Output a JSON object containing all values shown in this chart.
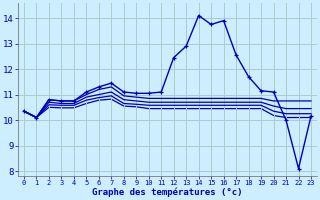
{
  "title": "Graphe des températures (°c)",
  "bg_color": "#cceeff",
  "grid_color": "#aacccc",
  "line_color": "#0000bb",
  "xlim": [
    -0.5,
    23.5
  ],
  "ylim": [
    7.8,
    14.6
  ],
  "xtick_labels": [
    "0",
    "1",
    "2",
    "3",
    "4",
    "5",
    "6",
    "7",
    "8",
    "9",
    "10",
    "11",
    "12",
    "13",
    "14",
    "15",
    "16",
    "17",
    "18",
    "19",
    "20",
    "21",
    "22",
    "23"
  ],
  "yticks": [
    8,
    9,
    10,
    11,
    12,
    13,
    14
  ],
  "series": [
    {
      "x": [
        0,
        1,
        2,
        3,
        4,
        5,
        6,
        7,
        8,
        9,
        10,
        11,
        12,
        13,
        14,
        15,
        16,
        17,
        18,
        19,
        20,
        21,
        22,
        23
      ],
      "y": [
        10.35,
        10.1,
        10.8,
        10.75,
        10.75,
        11.1,
        11.3,
        11.45,
        11.1,
        11.05,
        11.05,
        11.1,
        12.45,
        12.9,
        14.1,
        13.75,
        13.9,
        12.55,
        11.7,
        11.15,
        11.1,
        10.0,
        8.1,
        10.15
      ],
      "marker": "+",
      "markersize": 3.5,
      "linewidth": 1.0,
      "zorder": 5
    },
    {
      "x": [
        0,
        1,
        2,
        3,
        4,
        5,
        6,
        7,
        8,
        9,
        10,
        11,
        12,
        13,
        14,
        15,
        16,
        17,
        18,
        19,
        20,
        21,
        22,
        23
      ],
      "y": [
        10.35,
        10.1,
        10.8,
        10.75,
        10.75,
        11.0,
        11.2,
        11.3,
        10.95,
        10.9,
        10.85,
        10.85,
        10.85,
        10.85,
        10.85,
        10.85,
        10.85,
        10.85,
        10.85,
        10.85,
        10.75,
        10.75,
        10.75,
        10.75
      ],
      "marker": null,
      "linewidth": 0.9,
      "zorder": 4
    },
    {
      "x": [
        0,
        1,
        2,
        3,
        4,
        5,
        6,
        7,
        8,
        9,
        10,
        11,
        12,
        13,
        14,
        15,
        16,
        17,
        18,
        19,
        20,
        21,
        22,
        23
      ],
      "y": [
        10.35,
        10.1,
        10.7,
        10.65,
        10.65,
        10.9,
        11.0,
        11.1,
        10.8,
        10.75,
        10.7,
        10.7,
        10.7,
        10.7,
        10.7,
        10.7,
        10.7,
        10.7,
        10.7,
        10.7,
        10.55,
        10.45,
        10.45,
        10.45
      ],
      "marker": null,
      "linewidth": 0.9,
      "zorder": 3
    },
    {
      "x": [
        0,
        1,
        2,
        3,
        4,
        5,
        6,
        7,
        8,
        9,
        10,
        11,
        12,
        13,
        14,
        15,
        16,
        17,
        18,
        19,
        20,
        21,
        22,
        23
      ],
      "y": [
        10.35,
        10.1,
        10.6,
        10.58,
        10.58,
        10.78,
        10.88,
        10.95,
        10.65,
        10.62,
        10.58,
        10.58,
        10.58,
        10.58,
        10.58,
        10.58,
        10.58,
        10.58,
        10.58,
        10.58,
        10.35,
        10.25,
        10.25,
        10.25
      ],
      "marker": null,
      "linewidth": 0.9,
      "zorder": 2
    },
    {
      "x": [
        0,
        1,
        2,
        3,
        4,
        5,
        6,
        7,
        8,
        9,
        10,
        11,
        12,
        13,
        14,
        15,
        16,
        17,
        18,
        19,
        20,
        21,
        22,
        23
      ],
      "y": [
        10.35,
        10.1,
        10.5,
        10.48,
        10.48,
        10.65,
        10.78,
        10.82,
        10.55,
        10.52,
        10.45,
        10.45,
        10.45,
        10.45,
        10.45,
        10.45,
        10.45,
        10.45,
        10.45,
        10.45,
        10.18,
        10.1,
        10.1,
        10.1
      ],
      "marker": null,
      "linewidth": 0.9,
      "zorder": 1
    }
  ]
}
